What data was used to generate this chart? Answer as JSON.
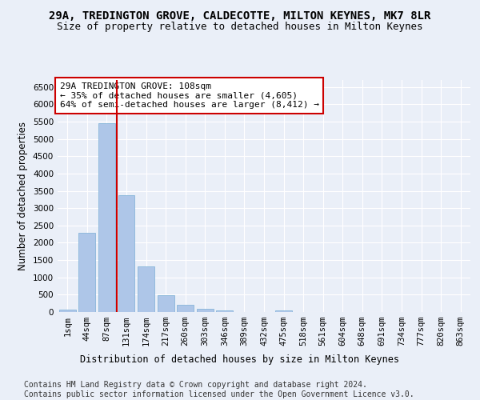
{
  "title": "29A, TREDINGTON GROVE, CALDECOTTE, MILTON KEYNES, MK7 8LR",
  "subtitle": "Size of property relative to detached houses in Milton Keynes",
  "xlabel": "Distribution of detached houses by size in Milton Keynes",
  "ylabel": "Number of detached properties",
  "footer_line1": "Contains HM Land Registry data © Crown copyright and database right 2024.",
  "footer_line2": "Contains public sector information licensed under the Open Government Licence v3.0.",
  "categories": [
    "1sqm",
    "44sqm",
    "87sqm",
    "131sqm",
    "174sqm",
    "217sqm",
    "260sqm",
    "303sqm",
    "346sqm",
    "389sqm",
    "432sqm",
    "475sqm",
    "518sqm",
    "561sqm",
    "604sqm",
    "648sqm",
    "691sqm",
    "734sqm",
    "777sqm",
    "820sqm",
    "863sqm"
  ],
  "bar_values": [
    70,
    2280,
    5450,
    3380,
    1310,
    480,
    215,
    95,
    50,
    0,
    0,
    55,
    0,
    0,
    0,
    0,
    0,
    0,
    0,
    0,
    0
  ],
  "bar_color": "#aec6e8",
  "bar_edge_color": "#7aaed4",
  "vline_color": "#cc0000",
  "annotation_text": "29A TREDINGTON GROVE: 108sqm\n← 35% of detached houses are smaller (4,605)\n64% of semi-detached houses are larger (8,412) →",
  "annotation_box_color": "#ffffff",
  "annotation_edge_color": "#cc0000",
  "ylim": [
    0,
    6700
  ],
  "yticks": [
    0,
    500,
    1000,
    1500,
    2000,
    2500,
    3000,
    3500,
    4000,
    4500,
    5000,
    5500,
    6000,
    6500
  ],
  "background_color": "#eaeff8",
  "grid_color": "#ffffff",
  "title_fontsize": 10,
  "subtitle_fontsize": 9,
  "axis_label_fontsize": 8.5,
  "tick_fontsize": 7.5,
  "annotation_fontsize": 8,
  "footer_fontsize": 7
}
